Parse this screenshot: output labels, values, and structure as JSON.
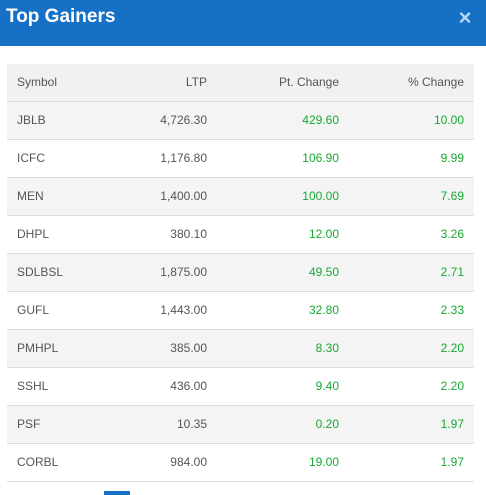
{
  "header": {
    "title": "Top Gainers",
    "close_icon": "close-icon"
  },
  "table": {
    "columns": [
      "Symbol",
      "LTP",
      "Pt. Change",
      "% Change"
    ],
    "rows": [
      [
        "JBLB",
        "4,726.30",
        "429.60",
        "10.00"
      ],
      [
        "ICFC",
        "1,176.80",
        "106.90",
        "9.99"
      ],
      [
        "MEN",
        "1,400.00",
        "100.00",
        "7.69"
      ],
      [
        "DHPL",
        "380.10",
        "12.00",
        "3.26"
      ],
      [
        "SDLBSL",
        "1,875.00",
        "49.50",
        "2.71"
      ],
      [
        "GUFL",
        "1,443.00",
        "32.80",
        "2.33"
      ],
      [
        "PMHPL",
        "385.00",
        "8.30",
        "2.20"
      ],
      [
        "SSHL",
        "436.00",
        "9.40",
        "2.20"
      ],
      [
        "PSF",
        "10.35",
        "0.20",
        "1.97"
      ],
      [
        "CORBL",
        "984.00",
        "19.00",
        "1.97"
      ]
    ]
  },
  "colors": {
    "header_bg": "#1670c6",
    "positive": "#18a832",
    "text": "#555555"
  }
}
